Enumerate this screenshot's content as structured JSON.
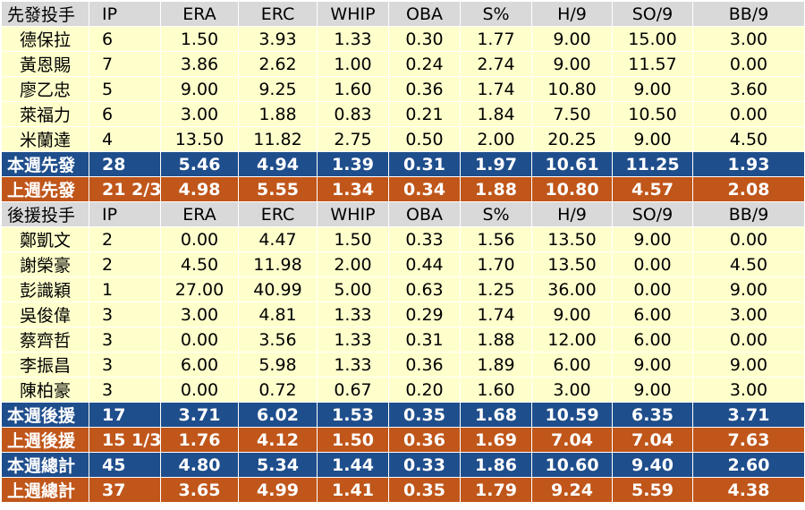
{
  "colors": {
    "header_bg": "#d9d9d9",
    "player_bg": "#ffffcc",
    "this_week_bg": "#1f4e8c",
    "last_week_bg": "#c0561a",
    "summary_text": "#ffffff"
  },
  "table": {
    "starters_header": [
      "先發投手",
      "IP",
      "ERA",
      "ERC",
      "WHIP",
      "OBA",
      "S%",
      "H/9",
      "SO/9",
      "BB/9"
    ],
    "starters": [
      [
        "德保拉",
        "6",
        "1.50",
        "3.93",
        "1.33",
        "0.30",
        "1.77",
        "9.00",
        "15.00",
        "3.00"
      ],
      [
        "黃恩賜",
        "7",
        "3.86",
        "2.62",
        "1.00",
        "0.24",
        "2.74",
        "9.00",
        "11.57",
        "0.00"
      ],
      [
        "廖乙忠",
        "5",
        "9.00",
        "9.25",
        "1.60",
        "0.36",
        "1.74",
        "10.80",
        "9.00",
        "3.60"
      ],
      [
        "萊福力",
        "6",
        "3.00",
        "1.88",
        "0.83",
        "0.21",
        "1.84",
        "7.50",
        "10.50",
        "0.00"
      ],
      [
        "米蘭達",
        "4",
        "13.50",
        "11.82",
        "2.75",
        "0.50",
        "2.00",
        "20.25",
        "9.00",
        "4.50"
      ]
    ],
    "starters_this_week": [
      "本週先發",
      "28",
      "5.46",
      "4.94",
      "1.39",
      "0.31",
      "1.97",
      "10.61",
      "11.25",
      "1.93"
    ],
    "starters_last_week": [
      "上週先發",
      "21 2/3",
      "4.98",
      "5.55",
      "1.34",
      "0.34",
      "1.88",
      "10.80",
      "4.57",
      "2.08"
    ],
    "relievers_header": [
      "後援投手",
      "IP",
      "ERA",
      "ERC",
      "WHIP",
      "OBA",
      "S%",
      "H/9",
      "SO/9",
      "BB/9"
    ],
    "relievers": [
      [
        "鄭凱文",
        "2",
        "0.00",
        "4.47",
        "1.50",
        "0.33",
        "1.56",
        "13.50",
        "9.00",
        "0.00"
      ],
      [
        "謝榮豪",
        "2",
        "4.50",
        "11.98",
        "2.00",
        "0.44",
        "1.70",
        "13.50",
        "0.00",
        "4.50"
      ],
      [
        "彭識穎",
        "1",
        "27.00",
        "40.99",
        "5.00",
        "0.63",
        "1.25",
        "36.00",
        "0.00",
        "9.00"
      ],
      [
        "吳俊偉",
        "3",
        "3.00",
        "4.81",
        "1.33",
        "0.29",
        "1.74",
        "9.00",
        "6.00",
        "3.00"
      ],
      [
        "蔡齊哲",
        "3",
        "0.00",
        "3.56",
        "1.33",
        "0.31",
        "1.88",
        "12.00",
        "6.00",
        "0.00"
      ],
      [
        "李振昌",
        "3",
        "6.00",
        "5.98",
        "1.33",
        "0.36",
        "1.89",
        "6.00",
        "9.00",
        "9.00"
      ],
      [
        "陳柏豪",
        "3",
        "0.00",
        "0.72",
        "0.67",
        "0.20",
        "1.60",
        "3.00",
        "9.00",
        "3.00"
      ]
    ],
    "relievers_this_week": [
      "本週後援",
      "17",
      "3.71",
      "6.02",
      "1.53",
      "0.35",
      "1.68",
      "10.59",
      "6.35",
      "3.71"
    ],
    "relievers_last_week": [
      "上週後援",
      "15 1/3",
      "1.76",
      "4.12",
      "1.50",
      "0.36",
      "1.69",
      "7.04",
      "7.04",
      "7.63"
    ],
    "total_this_week": [
      "本週總計",
      "45",
      "4.80",
      "5.34",
      "1.44",
      "0.33",
      "1.86",
      "10.60",
      "9.40",
      "2.60"
    ],
    "total_last_week": [
      "上週總計",
      "37",
      "3.65",
      "4.99",
      "1.41",
      "0.35",
      "1.79",
      "9.24",
      "5.59",
      "4.38"
    ]
  }
}
